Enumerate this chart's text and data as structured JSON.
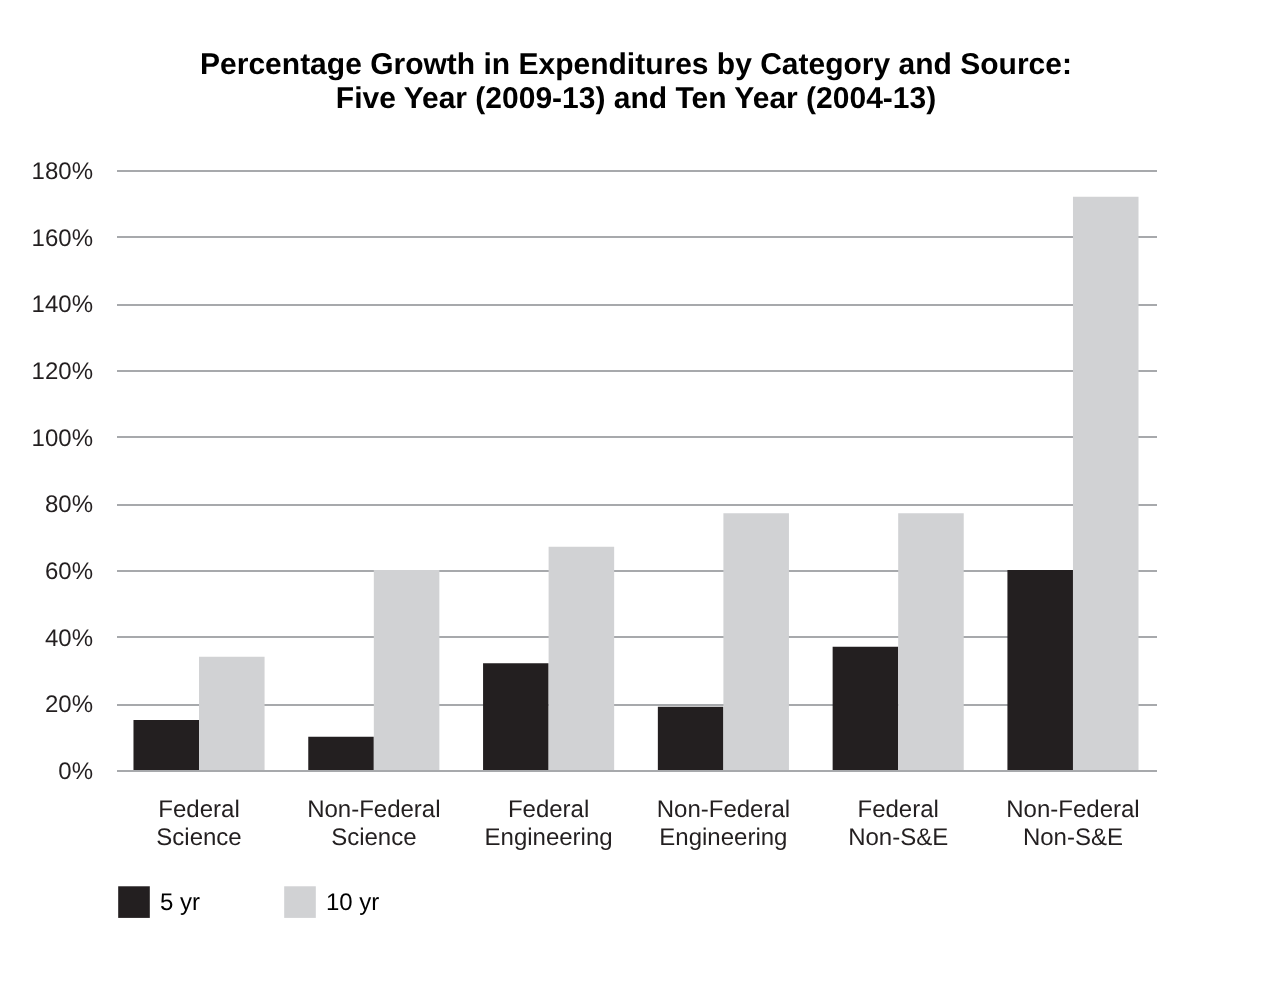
{
  "chart_data": {
    "type": "bar",
    "title": "Percentage Growth in Expenditures by Category and Source:\nFive Year (2009-13) and Ten Year (2004-13)",
    "categories": [
      "Federal Science",
      "Non-Federal Science",
      "Federal Engineering",
      "Non-Federal Engineering",
      "Federal Non-S&E",
      "Non-Federal Non-S&E"
    ],
    "series": [
      {
        "name": "5 yr",
        "color": "#231f20",
        "values": [
          15,
          10,
          32,
          19,
          37,
          60
        ]
      },
      {
        "name": "10 yr",
        "color": "#d1d2d4",
        "values": [
          34,
          60,
          67,
          77,
          77,
          172
        ]
      }
    ],
    "ylim": [
      0,
      180
    ],
    "yticks": [
      {
        "value": 0,
        "label": "0%"
      },
      {
        "value": 20,
        "label": "20%"
      },
      {
        "value": 40,
        "label": "40%"
      },
      {
        "value": 60,
        "label": "60%"
      },
      {
        "value": 80,
        "label": "80%"
      },
      {
        "value": 100,
        "label": "100%"
      },
      {
        "value": 120,
        "label": "120%"
      },
      {
        "value": 140,
        "label": "140%"
      },
      {
        "value": 160,
        "label": "160%"
      },
      {
        "value": 180,
        "label": "180%"
      }
    ],
    "grid": "y",
    "legend": "bottom"
  }
}
